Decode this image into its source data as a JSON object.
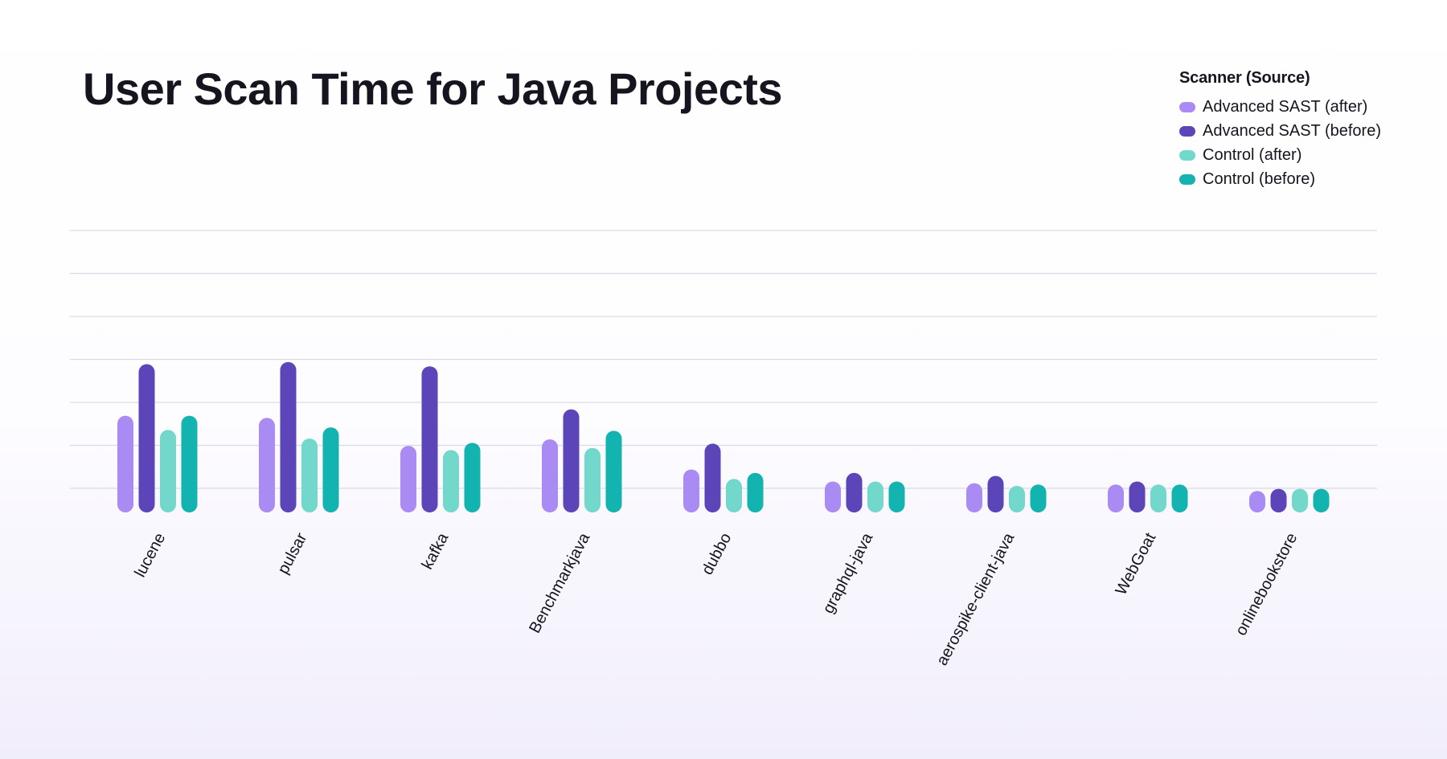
{
  "chart_data": {
    "type": "bar",
    "title": "User Scan Time for Java Projects",
    "xlabel": "",
    "ylabel": "",
    "ylim": [
      0,
      7
    ],
    "grid": true,
    "legend_title": "Scanner (Source)",
    "legend_position": "top-right",
    "categories": [
      "lucene",
      "pulsar",
      "kafka",
      "Benchmarkjava",
      "dubbo",
      "graphql-java",
      "aerospike-client-java",
      "WebGoat",
      "onlinebookstore"
    ],
    "series": [
      {
        "name": "Advanced SAST (after)",
        "color": "#a98bf3",
        "values": [
          2.25,
          2.2,
          1.55,
          1.7,
          1.0,
          0.72,
          0.68,
          0.65,
          0.5
        ]
      },
      {
        "name": "Advanced SAST (before)",
        "color": "#5b45b8",
        "values": [
          3.45,
          3.5,
          3.4,
          2.4,
          1.6,
          0.92,
          0.85,
          0.72,
          0.55
        ]
      },
      {
        "name": "Control (after)",
        "color": "#72d8cb",
        "values": [
          1.92,
          1.72,
          1.45,
          1.5,
          0.78,
          0.72,
          0.62,
          0.65,
          0.55
        ]
      },
      {
        "name": "Control (before)",
        "color": "#13b3b0",
        "values": [
          2.25,
          1.98,
          1.62,
          1.9,
          0.92,
          0.72,
          0.65,
          0.65,
          0.55
        ]
      }
    ]
  }
}
